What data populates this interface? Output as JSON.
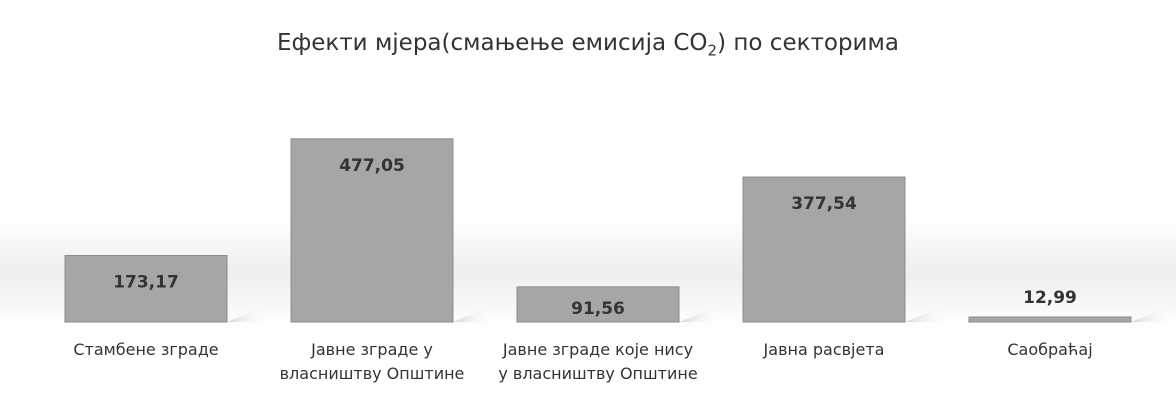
{
  "chart_data": {
    "type": "bar",
    "title": {
      "prefix": "Ефекти мјера(смањење емисија CO",
      "subscript": "2",
      "suffix": ") по секторима"
    },
    "categories": [
      "Стамбене зграде",
      "Јавне зграде у\nвласништву Општине",
      "Јавне зграде које нису\nу власништву Општине",
      "Јавна расвјета",
      "Саобраћај"
    ],
    "values": [
      173.17,
      477.05,
      91.56,
      377.54,
      12.99
    ],
    "value_labels": [
      "173,17",
      "477,05",
      "91,56",
      "377,54",
      "12,99"
    ],
    "ylim": [
      0,
      500
    ],
    "grid": false,
    "legend": "none",
    "colors": {
      "bar": "#a6a6a6",
      "bar_outline": "#8c8c8c",
      "label": "#333333",
      "shadow": "#d9d9d9",
      "floor": "#ececec"
    }
  }
}
